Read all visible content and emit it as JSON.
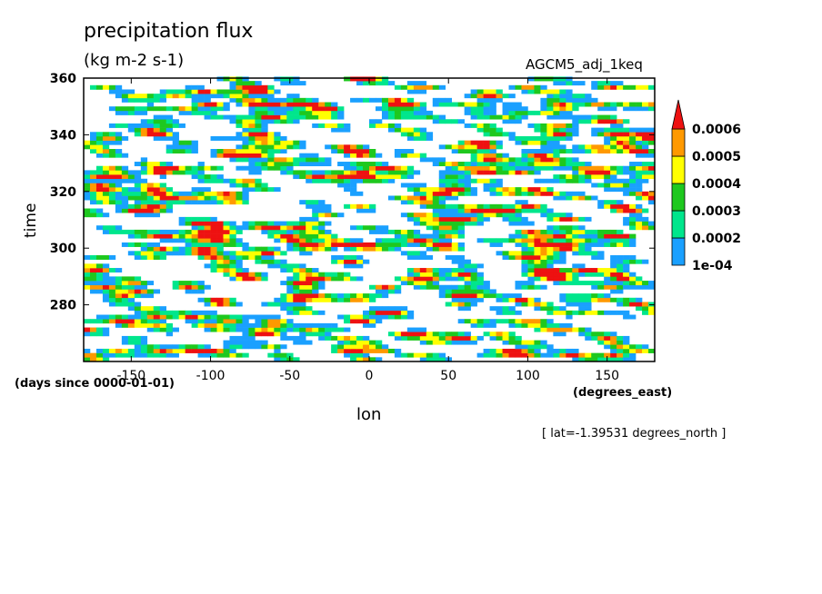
{
  "chart_data": {
    "type": "heatmap",
    "title": "precipitation flux",
    "units": "(kg m-2 s-1)",
    "dataset": "AGCM5_adj_1keq",
    "xlabel": "lon",
    "ylabel": "time",
    "x_units": "(degrees_east)",
    "y_units": "(days since 0000-01-01)",
    "annotation": "[ lat=-1.39531 degrees_north ]",
    "xlim": [
      -180,
      180
    ],
    "ylim": [
      260,
      360
    ],
    "x_ticks": [
      -150,
      -100,
      -50,
      0,
      50,
      100,
      150
    ],
    "y_ticks": [
      280,
      300,
      320,
      340,
      360
    ],
    "colorbar": {
      "levels": [
        0.0001,
        0.0002,
        0.0003,
        0.0004,
        0.0005,
        0.0006
      ],
      "level_labels": [
        "1e-04",
        "0.0002",
        "0.0003",
        "0.0004",
        "0.0005",
        "0.0006"
      ],
      "colors": [
        "#1aa0ff",
        "#00e68c",
        "#1ec81e",
        "#ffff00",
        "#ff9900",
        "#ee1111"
      ]
    }
  }
}
